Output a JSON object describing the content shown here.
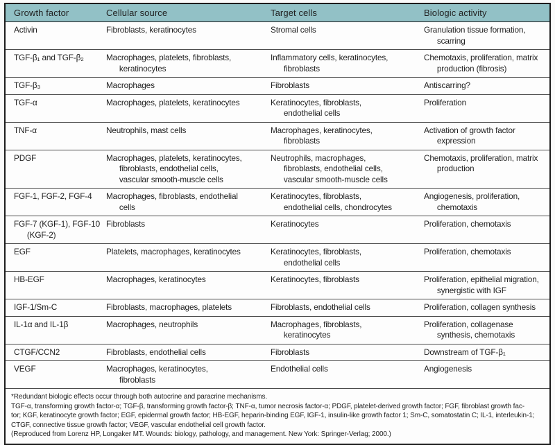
{
  "colors": {
    "header_bg": "#92c1c6",
    "outer_border": "#1c1c1c",
    "row_line": "#4a4a4a",
    "text": "#1f1f1f"
  },
  "table": {
    "headers": [
      "Growth factor",
      "Cellular source",
      "Target cells",
      "Biologic activity"
    ],
    "rows": [
      {
        "growth_factor": "Activin",
        "cellular_source": "Fibroblasts, keratinocytes",
        "target_cells": "Stromal cells",
        "biologic_activity": "Granulation tissue formation,\nscarring"
      },
      {
        "growth_factor": "TGF-β₁ and TGF-β₂",
        "cellular_source": "Macrophages, platelets, fibroblasts,\nkeratinocytes",
        "target_cells": "Inflammatory cells, keratinocytes,\nfibroblasts",
        "biologic_activity": "Chemotaxis, proliferation, matrix\nproduction (fibrosis)"
      },
      {
        "growth_factor": "TGF-β₃",
        "cellular_source": "Macrophages",
        "target_cells": "Fibroblasts",
        "biologic_activity": "Antiscarring?"
      },
      {
        "growth_factor": "TGF-α",
        "cellular_source": "Macrophages, platelets, keratinocytes",
        "target_cells": "Keratinocytes, fibroblasts,\nendothelial cells",
        "biologic_activity": "Proliferation"
      },
      {
        "growth_factor": "TNF-α",
        "cellular_source": "Neutrophils, mast cells",
        "target_cells": "Macrophages, keratinocytes,\nfibroblasts",
        "biologic_activity": "Activation of growth factor\nexpression"
      },
      {
        "growth_factor": "PDGF",
        "cellular_source": "Macrophages, platelets, keratinocytes,\nfibroblasts, endothelial cells,\nvascular smooth-muscle cells",
        "target_cells": "Neutrophils, macrophages,\nfibroblasts, endothelial cells,\nvascular smooth-muscle cells",
        "biologic_activity": "Chemotaxis, proliferation, matrix\nproduction"
      },
      {
        "growth_factor": "FGF-1, FGF-2, FGF-4",
        "cellular_source": "Macrophages, fibroblasts, endothelial\ncells",
        "target_cells": "Keratinocytes, fibroblasts,\nendothelial cells, chondrocytes",
        "biologic_activity": "Angiogenesis, proliferation,\nchemotaxis"
      },
      {
        "growth_factor": "FGF-7 (KGF-1), FGF-10\n(KGF-2)",
        "cellular_source": "Fibroblasts",
        "target_cells": "Keratinocytes",
        "biologic_activity": "Proliferation, chemotaxis"
      },
      {
        "growth_factor": "EGF",
        "cellular_source": "Platelets, macrophages, keratinocytes",
        "target_cells": "Keratinocytes, fibroblasts,\nendothelial cells",
        "biologic_activity": "Proliferation, chemotaxis"
      },
      {
        "growth_factor": "HB-EGF",
        "cellular_source": "Macrophages, keratinocytes",
        "target_cells": "Keratinocytes, fibroblasts",
        "biologic_activity": "Proliferation, epithelial migration,\nsynergistic with IGF"
      },
      {
        "growth_factor": "IGF-1/Sm-C",
        "cellular_source": "Fibroblasts, macrophages, platelets",
        "target_cells": "Fibroblasts, endothelial cells",
        "biologic_activity": "Proliferation, collagen synthesis"
      },
      {
        "growth_factor": "IL-1α and IL-1β",
        "cellular_source": "Macrophages, neutrophils",
        "target_cells": "Macrophages, fibroblasts,\nkeratinocytes",
        "biologic_activity": "Proliferation, collagenase\nsynthesis, chemotaxis"
      },
      {
        "growth_factor": "CTGF/CCN2",
        "cellular_source": "Fibroblasts, endothelial cells",
        "target_cells": "Fibroblasts",
        "biologic_activity": "Downstream of TGF-β₁"
      },
      {
        "growth_factor": "VEGF",
        "cellular_source": "Macrophages, keratinocytes,\nfibroblasts",
        "target_cells": "Endothelial cells",
        "biologic_activity": "Angiogenesis"
      }
    ]
  },
  "footnote": {
    "lines": [
      "*Redundant biologic effects occur through both autocrine and paracrine mechanisms.",
      "TGF-α, transforming growth factor-α; TGF-β, transforming growth factor-β; TNF-α, tumor necrosis factor-α; PDGF, platelet-derived growth factor; FGF, fibroblast growth fac-",
      "tor; KGF, keratinocyte growth factor; EGF, epidermal growth factor; HB-EGF, heparin-binding EGF, IGF-1, insulin-like growth factor 1; Sm-C, somatostatin C; IL-1, interleukin-1;",
      "CTGF, connective tissue growth factor; VEGF, vascular endothelial cell growth factor.",
      "(Reproduced from Lorenz HP, Longaker MT. Wounds: biology, pathology, and management. New York: Springer-Verlag; 2000.)"
    ]
  }
}
